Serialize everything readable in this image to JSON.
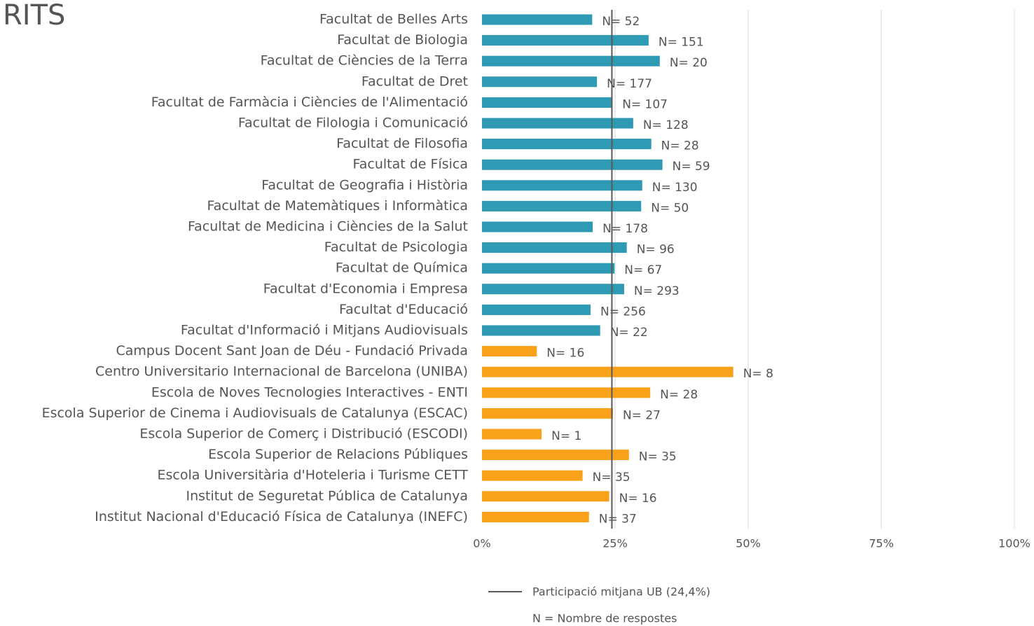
{
  "chart_data": {
    "type": "barh",
    "title": "RITS",
    "categories": [
      "Facultat de Belles Arts",
      "Facultat de Biologia",
      "Facultat de Ciències de la Terra",
      "Facultat de Dret",
      "Facultat de Farmàcia i Ciències de l'Alimentació",
      "Facultat de Filologia i Comunicació",
      "Facultat de Filosofia",
      "Facultat de Física",
      "Facultat de Geografia i Història",
      "Facultat de Matemàtiques i Informàtica",
      "Facultat de Medicina i Ciències de la Salut",
      "Facultat de Psicologia",
      "Facultat de Química",
      "Facultat d'Economia i Empresa",
      "Facultat d'Educació",
      "Facultat d'Informació i Mitjans Audiovisuals",
      "Campus Docent Sant Joan de Déu - Fundació Privada",
      "Centro Universitario Internacional de Barcelona (UNIBA)",
      "Escola de Noves Tecnologies Interactives - ENTI",
      "Escola Superior de Cinema i Audiovisuals de Catalunya (ESCAC)",
      "Escola Superior de Comerç i Distribució (ESCODI)",
      "Escola Superior de Relacions Públiques",
      "Escola Universitària d'Hoteleria i Turisme CETT",
      "Institut de Seguretat Pública de Catalunya",
      "Institut Nacional d'Educació Física de Catalunya (INEFC)"
    ],
    "values": [
      20.7,
      31.3,
      33.4,
      21.6,
      24.5,
      28.4,
      31.8,
      33.9,
      30.1,
      29.9,
      20.8,
      27.2,
      24.9,
      26.7,
      20.4,
      22.2,
      10.3,
      47.2,
      31.6,
      24.6,
      11.2,
      27.6,
      18.9,
      23.9,
      20.1
    ],
    "colors": [
      "#2e9ab4",
      "#2e9ab4",
      "#2e9ab4",
      "#2e9ab4",
      "#2e9ab4",
      "#2e9ab4",
      "#2e9ab4",
      "#2e9ab4",
      "#2e9ab4",
      "#2e9ab4",
      "#2e9ab4",
      "#2e9ab4",
      "#2e9ab4",
      "#2e9ab4",
      "#2e9ab4",
      "#2e9ab4",
      "#f9a11b",
      "#f9a11b",
      "#f9a11b",
      "#f9a11b",
      "#f9a11b",
      "#f9a11b",
      "#f9a11b",
      "#f9a11b",
      "#f9a11b"
    ],
    "responses": [
      "N= 52",
      "N= 151",
      "N= 20",
      "N= 177",
      "N= 107",
      "N= 128",
      "N= 28",
      "N= 59",
      "N= 130",
      "N= 50",
      "N= 178",
      "N= 96",
      "N= 67",
      "N= 293",
      "N= 256",
      "N= 22",
      "N= 16",
      "N= 8",
      "N= 28",
      "N= 27",
      "N= 1",
      "N= 35",
      "N= 35",
      "N= 16",
      "N= 37"
    ],
    "reference_line": {
      "value": 24.4,
      "label": "Participació mitjana UB (24,4%)",
      "color": "#595959"
    },
    "footnote": "N =  Nombre de respostes",
    "xlim": [
      0,
      100
    ],
    "xticks": [
      {
        "value": 0,
        "label": "0%"
      },
      {
        "value": 25,
        "label": "25%"
      },
      {
        "value": 50,
        "label": "50%"
      },
      {
        "value": 75,
        "label": "75%"
      },
      {
        "value": 100,
        "label": "100%"
      }
    ],
    "grid": true
  }
}
